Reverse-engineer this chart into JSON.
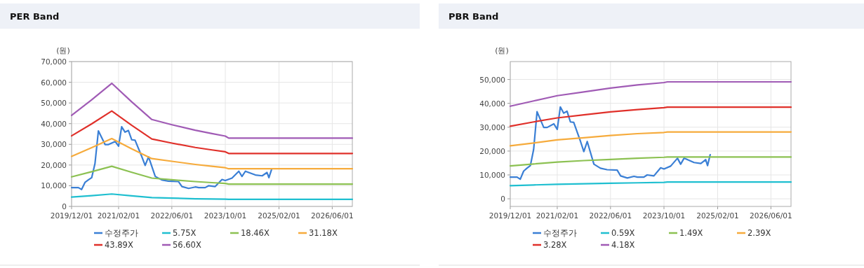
{
  "chart_data": [
    {
      "type": "line",
      "title": "PER Band",
      "ylabel": "(원)",
      "xlim": [
        "2019-12-01",
        "2026-12-01"
      ],
      "ylim": [
        0,
        70000
      ],
      "xticks": [
        {
          "value": "2019-12-01",
          "label": "2019/12/01"
        },
        {
          "value": "2021-02-01",
          "label": "2021/02/01"
        },
        {
          "value": "2022-06-01",
          "label": "2022/06/01"
        },
        {
          "value": "2023-10-01",
          "label": "2023/10/01"
        },
        {
          "value": "2025-02-01",
          "label": "2025/02/01"
        },
        {
          "value": "2026-06-01",
          "label": "2026/06/01"
        }
      ],
      "yticks": [
        0,
        {
          "value": 10000,
          "label": "10,000"
        },
        {
          "value": 20000,
          "label": "20,000"
        },
        {
          "value": 30000,
          "label": "30,000"
        },
        {
          "value": 40000,
          "label": "40,000"
        },
        {
          "value": 50000,
          "label": "50,000"
        },
        {
          "value": 60000,
          "label": "60,000"
        },
        {
          "value": 70000,
          "label": "70,000"
        }
      ],
      "grid": true,
      "legend": "bottom",
      "marker": "none",
      "line_style": "solid",
      "series": [
        {
          "name": "수정주가",
          "color": "#3a7fd5",
          "x": [
            "2019-12-01",
            "2020-02-01",
            "2020-03-01",
            "2020-04-01",
            "2020-05-01",
            "2020-06-01",
            "2020-07-01",
            "2020-08-01",
            "2020-10-01",
            "2020-11-01",
            "2021-01-01",
            "2021-02-01",
            "2021-03-01",
            "2021-04-01",
            "2021-05-01",
            "2021-06-01",
            "2021-07-01",
            "2021-09-01",
            "2021-10-01",
            "2021-11-01",
            "2022-01-01",
            "2022-03-01",
            "2022-05-01",
            "2022-08-01",
            "2022-09-01",
            "2022-11-01",
            "2023-01-01",
            "2023-02-01",
            "2023-04-01",
            "2023-05-01",
            "2023-07-01",
            "2023-09-01",
            "2023-10-01",
            "2023-12-01",
            "2024-02-01",
            "2024-03-01",
            "2024-04-01",
            "2024-07-01",
            "2024-09-01",
            "2024-10-15",
            "2024-11-01",
            "2024-11-25"
          ],
          "values": [
            9100,
            9100,
            8200,
            11600,
            12800,
            13900,
            20700,
            36500,
            29900,
            29900,
            31400,
            29100,
            38500,
            35900,
            36700,
            32200,
            32000,
            24000,
            19800,
            24000,
            14500,
            12800,
            12200,
            12000,
            9600,
            8700,
            9400,
            9100,
            9100,
            10000,
            9600,
            13000,
            12500,
            13700,
            17000,
            14500,
            17000,
            15200,
            14800,
            16400,
            13900,
            17800
          ]
        },
        {
          "name": "5.75X",
          "color": "#1fbfd0",
          "x": [
            "2019-12-01",
            "2020-06-01",
            "2020-12-01",
            "2021-06-01",
            "2021-12-01",
            "2022-06-01",
            "2023-01-01",
            "2023-06-01",
            "2023-10-01",
            "2023-11-01",
            "2026-12-01"
          ],
          "values": [
            4500,
            5200,
            6000,
            5100,
            4300,
            4000,
            3700,
            3600,
            3500,
            3400,
            3400
          ]
        },
        {
          "name": "18.46X",
          "color": "#8cc152",
          "x": [
            "2019-12-01",
            "2020-06-01",
            "2020-12-01",
            "2021-06-01",
            "2021-12-01",
            "2022-06-01",
            "2023-01-01",
            "2023-06-01",
            "2023-10-01",
            "2023-11-01",
            "2026-12-01"
          ],
          "values": [
            14300,
            16800,
            19400,
            16500,
            13700,
            12900,
            12000,
            11500,
            11100,
            10800,
            10800
          ]
        },
        {
          "name": "31.18X",
          "color": "#f6ab3c",
          "x": [
            "2019-12-01",
            "2020-06-01",
            "2020-12-01",
            "2021-06-01",
            "2021-12-01",
            "2022-06-01",
            "2023-01-01",
            "2023-06-01",
            "2023-10-01",
            "2023-11-01",
            "2026-12-01"
          ],
          "values": [
            24200,
            28400,
            32800,
            27800,
            23100,
            21800,
            20300,
            19400,
            18700,
            18200,
            18200
          ]
        },
        {
          "name": "43.89X",
          "color": "#e0302a",
          "x": [
            "2019-12-01",
            "2020-06-01",
            "2020-12-01",
            "2021-06-01",
            "2021-12-01",
            "2022-06-01",
            "2023-01-01",
            "2023-06-01",
            "2023-10-01",
            "2023-11-01",
            "2026-12-01"
          ],
          "values": [
            34100,
            39900,
            46100,
            39200,
            32600,
            30600,
            28500,
            27300,
            26400,
            25600,
            25600
          ]
        },
        {
          "name": "56.60X",
          "color": "#a05bb5",
          "x": [
            "2019-12-01",
            "2020-06-01",
            "2020-12-01",
            "2021-06-01",
            "2021-12-01",
            "2022-06-01",
            "2023-01-01",
            "2023-06-01",
            "2023-10-01",
            "2023-11-01",
            "2026-12-01"
          ],
          "values": [
            44000,
            51500,
            59500,
            50500,
            42000,
            39500,
            36800,
            35200,
            34000,
            33000,
            33000
          ]
        }
      ]
    },
    {
      "type": "line",
      "title": "PBR Band",
      "ylabel": "(원)",
      "xlim": [
        "2019-12-01",
        "2026-12-01"
      ],
      "ylim": [
        -3200,
        57500
      ],
      "xticks": [
        {
          "value": "2019-12-01",
          "label": "2019/12/01"
        },
        {
          "value": "2021-02-01",
          "label": "2021/02/01"
        },
        {
          "value": "2022-06-01",
          "label": "2022/06/01"
        },
        {
          "value": "2023-10-01",
          "label": "2023/10/01"
        },
        {
          "value": "2025-02-01",
          "label": "2025/02/01"
        },
        {
          "value": "2026-06-01",
          "label": "2026/06/01"
        }
      ],
      "yticks": [
        0,
        {
          "value": 10000,
          "label": "10,000"
        },
        {
          "value": 20000,
          "label": "20,000"
        },
        {
          "value": 30000,
          "label": "30,000"
        },
        {
          "value": 40000,
          "label": "40,000"
        },
        {
          "value": 50000,
          "label": "50,000"
        }
      ],
      "grid": true,
      "legend": "bottom",
      "marker": "none",
      "line_style": "solid",
      "series": [
        {
          "name": "수정주가",
          "color": "#3a7fd5",
          "x": [
            "2019-12-01",
            "2020-02-01",
            "2020-03-01",
            "2020-04-01",
            "2020-05-01",
            "2020-06-01",
            "2020-07-01",
            "2020-08-01",
            "2020-10-01",
            "2020-11-01",
            "2021-01-01",
            "2021-02-01",
            "2021-03-01",
            "2021-04-01",
            "2021-05-01",
            "2021-06-01",
            "2021-07-01",
            "2021-09-01",
            "2021-10-01",
            "2021-11-01",
            "2022-01-01",
            "2022-03-01",
            "2022-05-01",
            "2022-08-01",
            "2022-09-01",
            "2022-11-01",
            "2023-01-01",
            "2023-02-01",
            "2023-04-01",
            "2023-05-01",
            "2023-07-01",
            "2023-09-01",
            "2023-10-01",
            "2023-12-01",
            "2024-02-01",
            "2024-03-01",
            "2024-04-01",
            "2024-07-01",
            "2024-09-01",
            "2024-10-15",
            "2024-11-01",
            "2024-11-25"
          ],
          "values": [
            9100,
            9100,
            8200,
            11600,
            12800,
            13900,
            20700,
            36500,
            29900,
            29900,
            31400,
            29100,
            38500,
            35900,
            36700,
            32200,
            32000,
            24000,
            19800,
            24000,
            14500,
            12800,
            12200,
            12000,
            9600,
            8700,
            9400,
            9100,
            9100,
            10000,
            9600,
            13000,
            12500,
            13700,
            17000,
            14500,
            17000,
            15200,
            14800,
            16400,
            13900,
            18500
          ]
        },
        {
          "name": "0.59X",
          "color": "#1fbfd0",
          "x": [
            "2019-12-01",
            "2020-07-01",
            "2021-02-01",
            "2021-10-01",
            "2022-06-01",
            "2023-02-01",
            "2023-10-01",
            "2023-11-01",
            "2026-12-01"
          ],
          "values": [
            5500,
            5800,
            6100,
            6300,
            6500,
            6700,
            6900,
            7000,
            7000
          ]
        },
        {
          "name": "1.49X",
          "color": "#8cc152",
          "x": [
            "2019-12-01",
            "2020-07-01",
            "2021-02-01",
            "2021-10-01",
            "2022-06-01",
            "2023-02-01",
            "2023-10-01",
            "2023-11-01",
            "2026-12-01"
          ],
          "values": [
            13800,
            14600,
            15400,
            16000,
            16500,
            17000,
            17400,
            17500,
            17500
          ]
        },
        {
          "name": "2.39X",
          "color": "#f6ab3c",
          "x": [
            "2019-12-01",
            "2020-07-01",
            "2021-02-01",
            "2021-10-01",
            "2022-06-01",
            "2023-02-01",
            "2023-10-01",
            "2023-11-01",
            "2026-12-01"
          ],
          "values": [
            22200,
            23400,
            24700,
            25600,
            26500,
            27300,
            27800,
            28000,
            28000
          ]
        },
        {
          "name": "3.28X",
          "color": "#e0302a",
          "x": [
            "2019-12-01",
            "2020-07-01",
            "2021-02-01",
            "2021-10-01",
            "2022-06-01",
            "2023-02-01",
            "2023-10-01",
            "2023-11-01",
            "2026-12-01"
          ],
          "values": [
            30400,
            32200,
            33900,
            35200,
            36400,
            37400,
            38200,
            38400,
            38400
          ]
        },
        {
          "name": "4.18X",
          "color": "#a05bb5",
          "x": [
            "2019-12-01",
            "2020-07-01",
            "2021-02-01",
            "2021-10-01",
            "2022-06-01",
            "2023-02-01",
            "2023-10-01",
            "2023-11-01",
            "2026-12-01"
          ],
          "values": [
            38800,
            41000,
            43200,
            44800,
            46400,
            47700,
            48700,
            49000,
            49000
          ]
        }
      ]
    }
  ]
}
